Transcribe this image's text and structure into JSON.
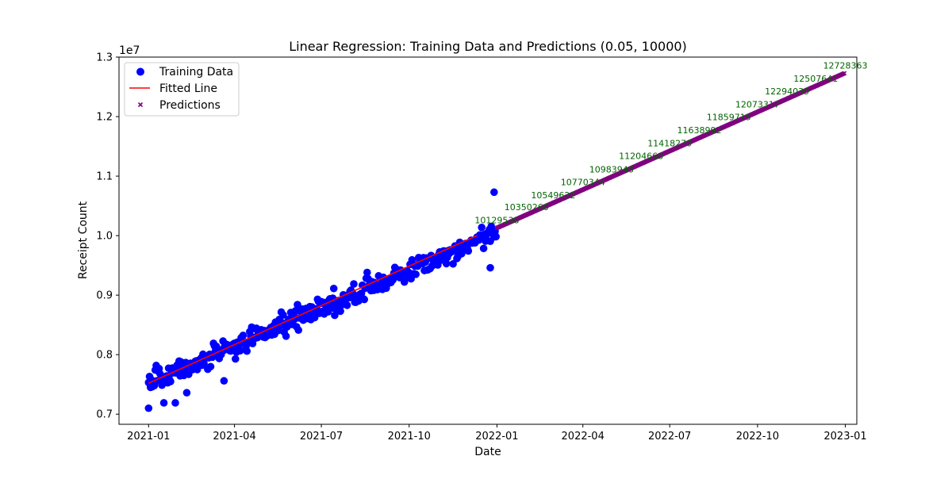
{
  "chart_data": {
    "type": "scatter",
    "title": "Linear Regression: Training Data and Predictions (0.05, 10000)",
    "xlabel": "Date",
    "ylabel": "Receipt Count",
    "y_offset_label": "1e7",
    "xlim": [
      "2020-12-01",
      "2023-01-13"
    ],
    "ylim": [
      6830000,
      13000000
    ],
    "x_ticks": [
      "2021-01-01",
      "2021-04-01",
      "2021-07-01",
      "2021-10-01",
      "2022-01-01",
      "2022-04-01",
      "2022-07-01",
      "2022-10-01",
      "2023-01-01"
    ],
    "x_tick_labels": [
      "2021-01",
      "2021-04",
      "2021-07",
      "2021-10",
      "2022-01",
      "2022-04",
      "2022-07",
      "2022-10",
      "2023-01"
    ],
    "y_ticks": [
      7000000,
      8000000,
      9000000,
      10000000,
      11000000,
      12000000,
      13000000
    ],
    "y_tick_labels": [
      "0.7",
      "0.8",
      "0.9",
      "1.0",
      "1.1",
      "1.2",
      "1.3"
    ],
    "grid": false,
    "legend": {
      "position": "top-left",
      "entries": [
        {
          "label": "Training Data",
          "marker": "circle",
          "color": "#0000ff"
        },
        {
          "label": "Fitted Line",
          "marker": "line",
          "color": "#ff0000"
        },
        {
          "label": "Predictions",
          "marker": "x",
          "color": "#800080"
        }
      ]
    },
    "training_data": {
      "name": "Training Data",
      "color": "#0000ff",
      "x_start": "2021-01-01",
      "x_end": "2021-12-31",
      "trend_start": 7520000,
      "trend_end": 10040000,
      "noise_sd": 180000,
      "outliers": [
        {
          "x": "2021-01-01",
          "y": 7100000
        },
        {
          "x": "2021-01-17",
          "y": 7190000
        },
        {
          "x": "2021-01-29",
          "y": 7190000
        },
        {
          "x": "2021-02-10",
          "y": 7360000
        },
        {
          "x": "2021-03-21",
          "y": 7560000
        },
        {
          "x": "2021-12-29",
          "y": 10730000
        },
        {
          "x": "2021-12-25",
          "y": 9460000
        }
      ]
    },
    "fitted_line": {
      "name": "Fitted Line",
      "color": "#ff0000",
      "x": [
        "2021-01-01",
        "2021-12-11"
      ],
      "y": [
        7520000,
        10000000
      ]
    },
    "predictions": {
      "name": "Predictions",
      "color": "#800080",
      "x_start": "2022-01-01",
      "x_end": "2022-12-31",
      "y_start": 10130000,
      "y_end": 12728363
    },
    "annotations": {
      "color": "#006400",
      "items": [
        {
          "x": "2022-01-01",
          "y": 10129538,
          "text": "10129538"
        },
        {
          "x": "2022-02-01",
          "y": 10350260,
          "text": "10350260"
        },
        {
          "x": "2022-03-01",
          "y": 10549622,
          "text": "10549622"
        },
        {
          "x": "2022-04-01",
          "y": 10770344,
          "text": "10770344"
        },
        {
          "x": "2022-05-01",
          "y": 10983946,
          "text": "10983946"
        },
        {
          "x": "2022-06-01",
          "y": 11204668,
          "text": "11204668"
        },
        {
          "x": "2022-07-01",
          "y": 11418270,
          "text": "11418270"
        },
        {
          "x": "2022-08-01",
          "y": 11638992,
          "text": "11638992"
        },
        {
          "x": "2022-09-01",
          "y": 11859715,
          "text": "11859715"
        },
        {
          "x": "2022-10-01",
          "y": 12073317,
          "text": "12073317"
        },
        {
          "x": "2022-11-01",
          "y": 12294039,
          "text": "12294039"
        },
        {
          "x": "2022-12-01",
          "y": 12507641,
          "text": "12507641"
        },
        {
          "x": "2023-01-01",
          "y": 12728363,
          "text": "12728363"
        }
      ]
    }
  }
}
